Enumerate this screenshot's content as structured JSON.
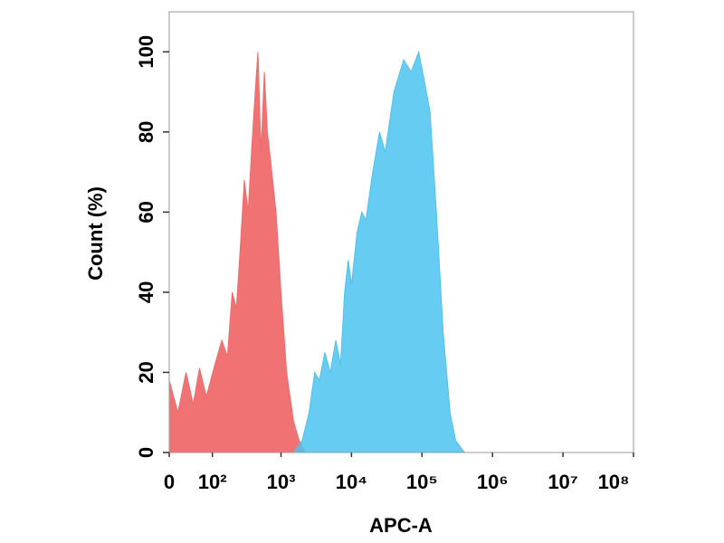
{
  "chart_data": {
    "type": "area",
    "xlabel": "APC-A",
    "ylabel": "Count  (%)",
    "xscale": "biexponential",
    "xlim": [
      0,
      100000000
    ],
    "ylim": [
      0,
      110
    ],
    "xticks": [
      {
        "value": 0,
        "label": "0"
      },
      {
        "value": 100,
        "label": "10²"
      },
      {
        "value": 1000,
        "label": "10³"
      },
      {
        "value": 10000,
        "label": "10⁴"
      },
      {
        "value": 100000,
        "label": "10⁵"
      },
      {
        "value": 1000000,
        "label": "10⁶"
      },
      {
        "value": 10000000,
        "label": "10⁷"
      },
      {
        "value": 100000000,
        "label": "10⁸"
      }
    ],
    "yticks": [
      0,
      20,
      40,
      60,
      80,
      100
    ],
    "series": [
      {
        "color": "#f06a6a",
        "x": [
          0,
          15,
          30,
          45,
          60,
          80,
          110,
          140,
          170,
          200,
          230,
          260,
          300,
          340,
          380,
          430,
          470,
          520,
          580,
          640,
          720,
          850,
          1000,
          1200,
          1500,
          1800,
          2200
        ],
        "values": [
          18,
          10,
          20,
          12,
          21,
          14,
          22,
          28,
          24,
          40,
          36,
          50,
          68,
          60,
          75,
          90,
          100,
          75,
          95,
          80,
          72,
          60,
          40,
          20,
          8,
          3,
          0
        ]
      },
      {
        "color": "#4cc3ee",
        "x": [
          1500,
          2000,
          2500,
          3000,
          3500,
          4200,
          5000,
          6000,
          7000,
          8000,
          9000,
          10000,
          12000,
          14000,
          16000,
          20000,
          25000,
          30000,
          40000,
          55000,
          70000,
          90000,
          110000,
          130000,
          160000,
          200000,
          250000,
          300000,
          400000
        ],
        "values": [
          0,
          3,
          10,
          20,
          18,
          25,
          20,
          28,
          22,
          40,
          48,
          42,
          55,
          60,
          58,
          70,
          80,
          75,
          90,
          98,
          95,
          100,
          92,
          85,
          60,
          30,
          10,
          3,
          0
        ]
      }
    ]
  }
}
